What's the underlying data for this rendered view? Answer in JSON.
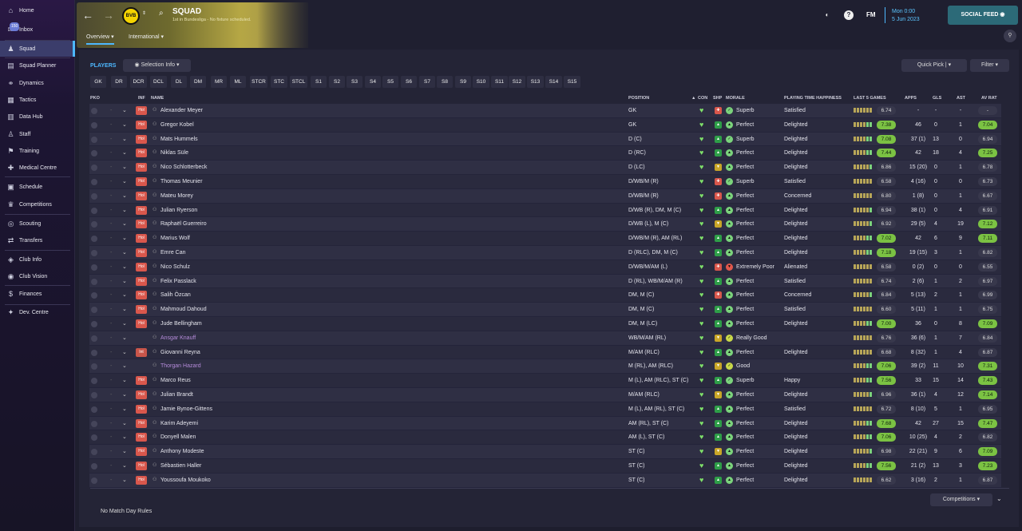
{
  "sidebar": [
    {
      "label": "Home",
      "icon": "home-icon"
    },
    {
      "label": "Inbox",
      "icon": "inbox-icon",
      "badge": "150"
    },
    {
      "label": "Squad",
      "icon": "squad-icon",
      "active": true
    },
    {
      "label": "Squad Planner",
      "icon": "squad-planner-icon"
    },
    {
      "label": "Dynamics",
      "icon": "dynamics-icon"
    },
    {
      "label": "Tactics",
      "icon": "tactics-icon"
    },
    {
      "label": "Data Hub",
      "icon": "data-hub-icon"
    },
    {
      "label": "Staff",
      "icon": "staff-icon"
    },
    {
      "label": "Training",
      "icon": "training-icon"
    },
    {
      "label": "Medical Centre",
      "icon": "medical-icon"
    },
    {
      "label": "Schedule",
      "icon": "schedule-icon"
    },
    {
      "label": "Competitions",
      "icon": "trophy-icon"
    },
    {
      "label": "Scouting",
      "icon": "scouting-icon"
    },
    {
      "label": "Transfers",
      "icon": "transfers-icon"
    },
    {
      "label": "Club Info",
      "icon": "club-info-icon"
    },
    {
      "label": "Club Vision",
      "icon": "club-vision-icon"
    },
    {
      "label": "Finances",
      "icon": "finances-icon"
    },
    {
      "label": "Dev. Centre",
      "icon": "dev-centre-icon"
    }
  ],
  "header": {
    "title": "SQUAD",
    "subtitle": "1st in Bundesliga - No fixture scheduled.",
    "club_badge": "BVB",
    "tabs": [
      "Overview",
      "International"
    ],
    "fm_label": "FM",
    "time": "Mon 0:00",
    "date": "5 Jun 2023",
    "social_feed": "SOCIAL FEED"
  },
  "toolbar": {
    "players_label": "PLAYERS",
    "selection_info": "Selection Info",
    "quick_pick": "Quick Pick",
    "filter": "Filter"
  },
  "positions": [
    "GK",
    "DR",
    "DCR",
    "DCL",
    "DL",
    "DM",
    "MR",
    "ML",
    "STCR",
    "STC",
    "STCL",
    "S1",
    "S2",
    "S3",
    "S4",
    "S5",
    "S6",
    "S7",
    "S8",
    "S9",
    "S10",
    "S11",
    "S12",
    "S13",
    "S14",
    "S15"
  ],
  "columns": {
    "pko": "PKO",
    "inf": "INF",
    "name": "NAME",
    "position": "POSITION",
    "con": "CON",
    "shp": "SHP",
    "morale": "MORALE",
    "pth": "PLAYING TIME HAPPINESS",
    "last5": "LAST 5 GAMES",
    "apps": "APPS",
    "gls": "GLS",
    "ast": "AST",
    "avrat": "AV RAT"
  },
  "colors": {
    "accent": "#4db8ff",
    "rating_high": "#7bc243",
    "injury": "#d9574c",
    "loan_name": "#b68cdb"
  },
  "players": [
    {
      "name": "Alexander Meyer",
      "inf": "Hol",
      "pos": "GK",
      "shp": "r",
      "morale": "Superb",
      "mor": "s",
      "pth": "Satisfied",
      "last5": "6.74",
      "apps": "-",
      "gls": "-",
      "ast": "-",
      "avrat": "-"
    },
    {
      "name": "Gregor Kobel",
      "inf": "Hol",
      "pos": "GK",
      "shp": "g",
      "morale": "Perfect",
      "mor": "p",
      "pth": "Delighted",
      "last5": "7.38",
      "apps": "46",
      "gls": "0",
      "ast": "1",
      "avrat": "7.04"
    },
    {
      "name": "Mats Hummels",
      "inf": "Hol",
      "pos": "D (C)",
      "shp": "g",
      "morale": "Superb",
      "mor": "s",
      "pth": "Delighted",
      "last5": "7.08",
      "apps": "37 (1)",
      "gls": "13",
      "ast": "0",
      "avrat": "6.94"
    },
    {
      "name": "Niklas Süle",
      "inf": "Hol",
      "pos": "D (RC)",
      "shp": "g",
      "morale": "Perfect",
      "mor": "p",
      "pth": "Delighted",
      "last5": "7.44",
      "apps": "42",
      "gls": "18",
      "ast": "4",
      "avrat": "7.25"
    },
    {
      "name": "Nico Schlotterbeck",
      "inf": "Hol",
      "pos": "D (LC)",
      "shp": "y",
      "morale": "Perfect",
      "mor": "p",
      "pth": "Delighted",
      "last5": "6.86",
      "apps": "15 (20)",
      "gls": "0",
      "ast": "1",
      "avrat": "6.78"
    },
    {
      "name": "Thomas Meunier",
      "inf": "Hol",
      "pos": "D/WB/M (R)",
      "shp": "r",
      "morale": "Superb",
      "mor": "s",
      "pth": "Satisfied",
      "last5": "6.58",
      "apps": "4 (16)",
      "gls": "0",
      "ast": "0",
      "avrat": "6.73"
    },
    {
      "name": "Mateu Morey",
      "inf": "Hol",
      "pos": "D/WB/M (R)",
      "shp": "r",
      "morale": "Perfect",
      "mor": "p",
      "pth": "Concerned",
      "last5": "6.80",
      "apps": "1 (8)",
      "gls": "0",
      "ast": "1",
      "avrat": "6.67"
    },
    {
      "name": "Julian Ryerson",
      "inf": "Hol",
      "pos": "D/WB (R), DM, M (C)",
      "shp": "g",
      "morale": "Perfect",
      "mor": "p",
      "pth": "Delighted",
      "last5": "6.94",
      "apps": "38 (1)",
      "gls": "0",
      "ast": "4",
      "avrat": "6.91"
    },
    {
      "name": "Raphaël Guerreiro",
      "inf": "Hol",
      "pos": "D/WB (L), M (C)",
      "shp": "y",
      "morale": "Perfect",
      "mor": "p",
      "pth": "Delighted",
      "last5": "6.92",
      "apps": "29 (5)",
      "gls": "4",
      "ast": "19",
      "avrat": "7.12"
    },
    {
      "name": "Marius Wolf",
      "inf": "Hol",
      "pos": "D/WB/M (R), AM (RL)",
      "shp": "g",
      "morale": "Perfect",
      "mor": "p",
      "pth": "Delighted",
      "last5": "7.02",
      "apps": "42",
      "gls": "6",
      "ast": "9",
      "avrat": "7.11"
    },
    {
      "name": "Emre Can",
      "inf": "Hol",
      "pos": "D (RLC), DM, M (C)",
      "shp": "g",
      "morale": "Perfect",
      "mor": "p",
      "pth": "Delighted",
      "last5": "7.18",
      "apps": "19 (15)",
      "gls": "3",
      "ast": "1",
      "avrat": "6.82"
    },
    {
      "name": "Nico Schulz",
      "inf": "Hol",
      "pos": "D/WB/M/AM (L)",
      "shp": "r",
      "morale": "Extremely Poor",
      "mor": "e",
      "pth": "Alienated",
      "last5": "6.58",
      "apps": "0 (2)",
      "gls": "0",
      "ast": "0",
      "avrat": "6.55"
    },
    {
      "name": "Felix Passlack",
      "inf": "Hol",
      "pos": "D (RL), WB/M/AM (R)",
      "shp": "g",
      "morale": "Perfect",
      "mor": "p",
      "pth": "Satisfied",
      "last5": "6.74",
      "apps": "2 (6)",
      "gls": "1",
      "ast": "2",
      "avrat": "6.97"
    },
    {
      "name": "Salih Özcan",
      "inf": "Hol",
      "pos": "DM, M (C)",
      "shp": "r",
      "morale": "Perfect",
      "mor": "p",
      "pth": "Concerned",
      "last5": "6.84",
      "apps": "5 (13)",
      "gls": "2",
      "ast": "1",
      "avrat": "6.99"
    },
    {
      "name": "Mahmoud Dahoud",
      "inf": "Hol",
      "pos": "DM, M (C)",
      "shp": "g",
      "morale": "Perfect",
      "mor": "p",
      "pth": "Satisfied",
      "last5": "6.60",
      "apps": "5 (11)",
      "gls": "1",
      "ast": "1",
      "avrat": "6.75"
    },
    {
      "name": "Jude Bellingham",
      "inf": "Hol",
      "pos": "DM, M (LC)",
      "shp": "g",
      "morale": "Perfect",
      "mor": "p",
      "pth": "Delighted",
      "last5": "7.00",
      "apps": "36",
      "gls": "0",
      "ast": "8",
      "avrat": "7.09"
    },
    {
      "name": "Ansgar Knauff",
      "inf": "",
      "pos": "WB/M/AM (RL)",
      "shp": "y",
      "morale": "Really Good",
      "mor": "r",
      "pth": "",
      "last5": "6.76",
      "apps": "36 (6)",
      "gls": "1",
      "ast": "7",
      "avrat": "6.84",
      "loan": true
    },
    {
      "name": "Giovanni Reyna",
      "inf": "Int",
      "pos": "M/AM (RLC)",
      "shp": "g",
      "morale": "Perfect",
      "mor": "p",
      "pth": "Delighted",
      "last5": "6.68",
      "apps": "8 (32)",
      "gls": "1",
      "ast": "4",
      "avrat": "6.87"
    },
    {
      "name": "Thorgan Hazard",
      "inf": "",
      "pos": "M (RL), AM (RLC)",
      "shp": "y",
      "morale": "Good",
      "mor": "r",
      "pth": "",
      "last5": "7.06",
      "apps": "39 (2)",
      "gls": "11",
      "ast": "10",
      "avrat": "7.31",
      "loan": true
    },
    {
      "name": "Marco Reus",
      "inf": "Hol",
      "pos": "M (L), AM (RLC), ST (C)",
      "shp": "g",
      "morale": "Superb",
      "mor": "s",
      "pth": "Happy",
      "last5": "7.56",
      "apps": "33",
      "gls": "15",
      "ast": "14",
      "avrat": "7.43"
    },
    {
      "name": "Julian Brandt",
      "inf": "Hol",
      "pos": "M/AM (RLC)",
      "shp": "y",
      "morale": "Perfect",
      "mor": "p",
      "pth": "Delighted",
      "last5": "6.96",
      "apps": "36 (1)",
      "gls": "4",
      "ast": "12",
      "avrat": "7.14"
    },
    {
      "name": "Jamie Bynoe-Gittens",
      "inf": "Hol",
      "pos": "M (L), AM (RL), ST (C)",
      "shp": "g",
      "morale": "Perfect",
      "mor": "p",
      "pth": "Satisfied",
      "last5": "6.72",
      "apps": "8 (10)",
      "gls": "5",
      "ast": "1",
      "avrat": "6.95"
    },
    {
      "name": "Karim Adeyemi",
      "inf": "Hol",
      "pos": "AM (RL), ST (C)",
      "shp": "g",
      "morale": "Perfect",
      "mor": "p",
      "pth": "Delighted",
      "last5": "7.68",
      "apps": "42",
      "gls": "27",
      "ast": "15",
      "avrat": "7.47"
    },
    {
      "name": "Donyell Malen",
      "inf": "Hol",
      "pos": "AM (L), ST (C)",
      "shp": "g",
      "morale": "Perfect",
      "mor": "p",
      "pth": "Delighted",
      "last5": "7.06",
      "apps": "10 (25)",
      "gls": "4",
      "ast": "2",
      "avrat": "6.82"
    },
    {
      "name": "Anthony Modeste",
      "inf": "Hol",
      "pos": "ST (C)",
      "shp": "y",
      "morale": "Perfect",
      "mor": "p",
      "pth": "Delighted",
      "last5": "6.98",
      "apps": "22 (21)",
      "gls": "9",
      "ast": "6",
      "avrat": "7.09"
    },
    {
      "name": "Sébastien Haller",
      "inf": "Hol",
      "pos": "ST (C)",
      "shp": "g",
      "morale": "Perfect",
      "mor": "p",
      "pth": "Delighted",
      "last5": "7.56",
      "apps": "21 (2)",
      "gls": "13",
      "ast": "3",
      "avrat": "7.23"
    },
    {
      "name": "Youssoufa Moukoko",
      "inf": "Hol",
      "pos": "ST (C)",
      "shp": "g",
      "morale": "Perfect",
      "mor": "p",
      "pth": "Delighted",
      "last5": "6.62",
      "apps": "3 (16)",
      "gls": "2",
      "ast": "1",
      "avrat": "6.87"
    }
  ],
  "footer": {
    "rules": "No Match Day Rules",
    "competitions": "Competitions"
  }
}
